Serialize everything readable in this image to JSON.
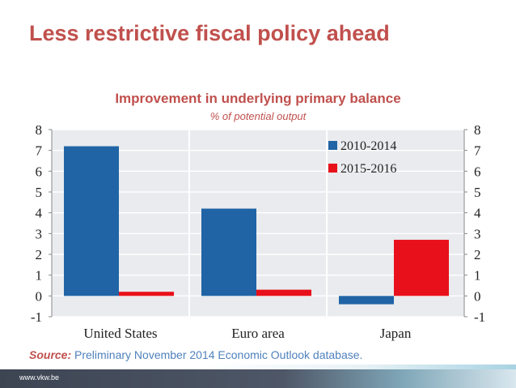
{
  "slide": {
    "title": "Less restrictive fiscal policy ahead",
    "source_label": "Source:",
    "source_text": " Preliminary November 2014 Economic Outlook database.",
    "footer_url": "www.vkw.be"
  },
  "chart_data": {
    "type": "bar",
    "title": "Improvement in underlying primary balance",
    "subtitle": "% of potential output",
    "categories": [
      "United States",
      "Euro area",
      "Japan"
    ],
    "series": [
      {
        "name": "2010-2014",
        "values": [
          7.2,
          4.2,
          -0.4
        ],
        "color": "#2064a6"
      },
      {
        "name": "2015-2016",
        "values": [
          0.2,
          0.3,
          2.7
        ],
        "color": "#e8101a"
      }
    ],
    "ylim": [
      -1,
      8
    ],
    "yticks": [
      -1,
      0,
      1,
      2,
      3,
      4,
      5,
      6,
      7,
      8
    ],
    "grid": true,
    "legend_position": "top-right",
    "plot_background": "#e9ebee"
  }
}
